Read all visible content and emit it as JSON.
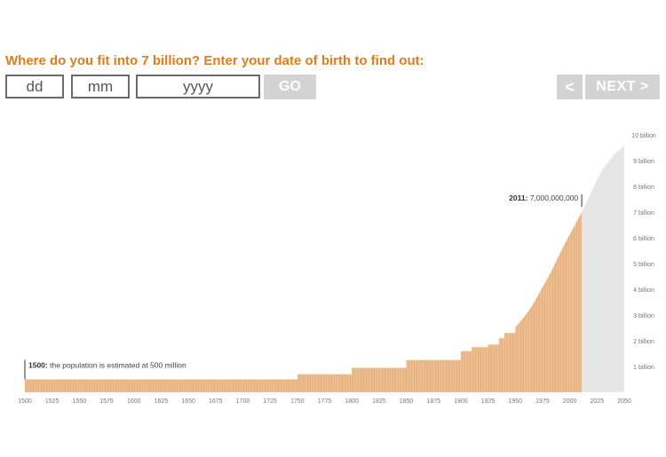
{
  "header": {
    "prompt": "Where do you fit into 7 billion? Enter your date of birth to find out:"
  },
  "form": {
    "day_placeholder": "dd",
    "month_placeholder": "mm",
    "year_placeholder": "yyyy",
    "go_label": "GO"
  },
  "nav": {
    "prev_label": "<",
    "next_label": "NEXT >"
  },
  "colors": {
    "accent": "#e07b1a",
    "bar_fill": "#e8b07b",
    "bar_line": "#ffffff",
    "projection": "#e6e6e6",
    "button": "#d3d3d3"
  },
  "chart_data": {
    "type": "area",
    "x_axis": {
      "range": [
        1500,
        2050
      ],
      "ticks": [
        "1500",
        "1525",
        "1550",
        "1575",
        "1600",
        "1625",
        "1650",
        "1675",
        "1700",
        "1725",
        "1750",
        "1775",
        "1800",
        "1825",
        "1850",
        "1875",
        "1900",
        "1925",
        "1950",
        "1975",
        "2000",
        "2025",
        "2050"
      ]
    },
    "y_axis": {
      "unit": "billion",
      "range": [
        0,
        10
      ],
      "ticks": [
        "1 billion",
        "2 billion",
        "3 billion",
        "4 billion",
        "5 billion",
        "6 billion",
        "7 billion",
        "8 billion",
        "9 billion",
        "10 billion"
      ]
    },
    "series": [
      {
        "points": [
          [
            1500,
            0.5
          ],
          [
            1750,
            0.5
          ],
          [
            1750,
            0.7
          ],
          [
            1800,
            0.7
          ],
          [
            1800,
            0.95
          ],
          [
            1850,
            0.95
          ],
          [
            1850,
            1.25
          ],
          [
            1900,
            1.25
          ],
          [
            1900,
            1.6
          ],
          [
            1910,
            1.6
          ],
          [
            1910,
            1.75
          ],
          [
            1925,
            1.75
          ],
          [
            1925,
            1.85
          ],
          [
            1935,
            1.85
          ],
          [
            1935,
            2.1
          ],
          [
            1940,
            2.1
          ],
          [
            1940,
            2.3
          ],
          [
            1950,
            2.3
          ],
          [
            1950,
            2.52
          ],
          [
            1955,
            2.77
          ],
          [
            1960,
            3.02
          ],
          [
            1965,
            3.33
          ],
          [
            1970,
            3.7
          ],
          [
            1975,
            4.08
          ],
          [
            1980,
            4.45
          ],
          [
            1985,
            4.87
          ],
          [
            1990,
            5.31
          ],
          [
            1995,
            5.74
          ],
          [
            2000,
            6.13
          ],
          [
            2005,
            6.52
          ],
          [
            2011,
            7.0
          ]
        ]
      },
      {
        "points": [
          [
            2011,
            7.0
          ],
          [
            2020,
            7.8
          ],
          [
            2025,
            8.25
          ],
          [
            2030,
            8.65
          ],
          [
            2040,
            9.2
          ],
          [
            2050,
            9.6
          ]
        ]
      }
    ],
    "annotations": [
      {
        "year": 1500,
        "label": "1500:",
        "text": "the population is estimated at 500 million"
      },
      {
        "year": 2011,
        "label": "2011:",
        "text": "7,000,000,000"
      }
    ]
  }
}
